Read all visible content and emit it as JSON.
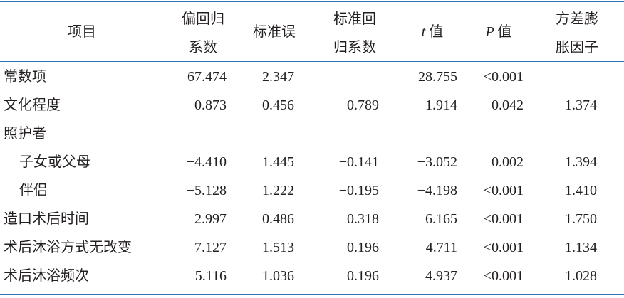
{
  "table": {
    "header": [
      [
        "项目"
      ],
      [
        "偏回归",
        "系数"
      ],
      [
        "标准误"
      ],
      [
        "标准回",
        "归系数"
      ],
      [
        "t",
        "值"
      ],
      [
        "P",
        "值"
      ],
      [
        "方差膨",
        "胀因子"
      ]
    ],
    "rows": [
      [
        "常数项",
        "67.474",
        "2.347",
        "—",
        "28.755",
        "<0.001",
        "—"
      ],
      [
        "文化程度",
        "0.873",
        "0.456",
        "0.789",
        "1.914",
        "0.042",
        "1.374"
      ],
      [
        "照护者"
      ],
      [
        "子女或父母",
        "−4.410",
        "1.445",
        "−0.141",
        "−3.052",
        "0.002",
        "1.394"
      ],
      [
        "伴侣",
        "−5.128",
        "1.222",
        "−0.195",
        "−4.198",
        "<0.001",
        "1.410"
      ],
      [
        "造口术后时间",
        "2.997",
        "0.486",
        "0.318",
        "6.165",
        "<0.001",
        "1.750"
      ],
      [
        "术后沐浴方式无改变",
        "7.127",
        "1.513",
        "0.196",
        "4.711",
        "<0.001",
        "1.134"
      ],
      [
        "术后沐浴频次",
        "5.116",
        "1.036",
        "0.196",
        "4.937",
        "<0.001",
        "1.028"
      ]
    ]
  }
}
